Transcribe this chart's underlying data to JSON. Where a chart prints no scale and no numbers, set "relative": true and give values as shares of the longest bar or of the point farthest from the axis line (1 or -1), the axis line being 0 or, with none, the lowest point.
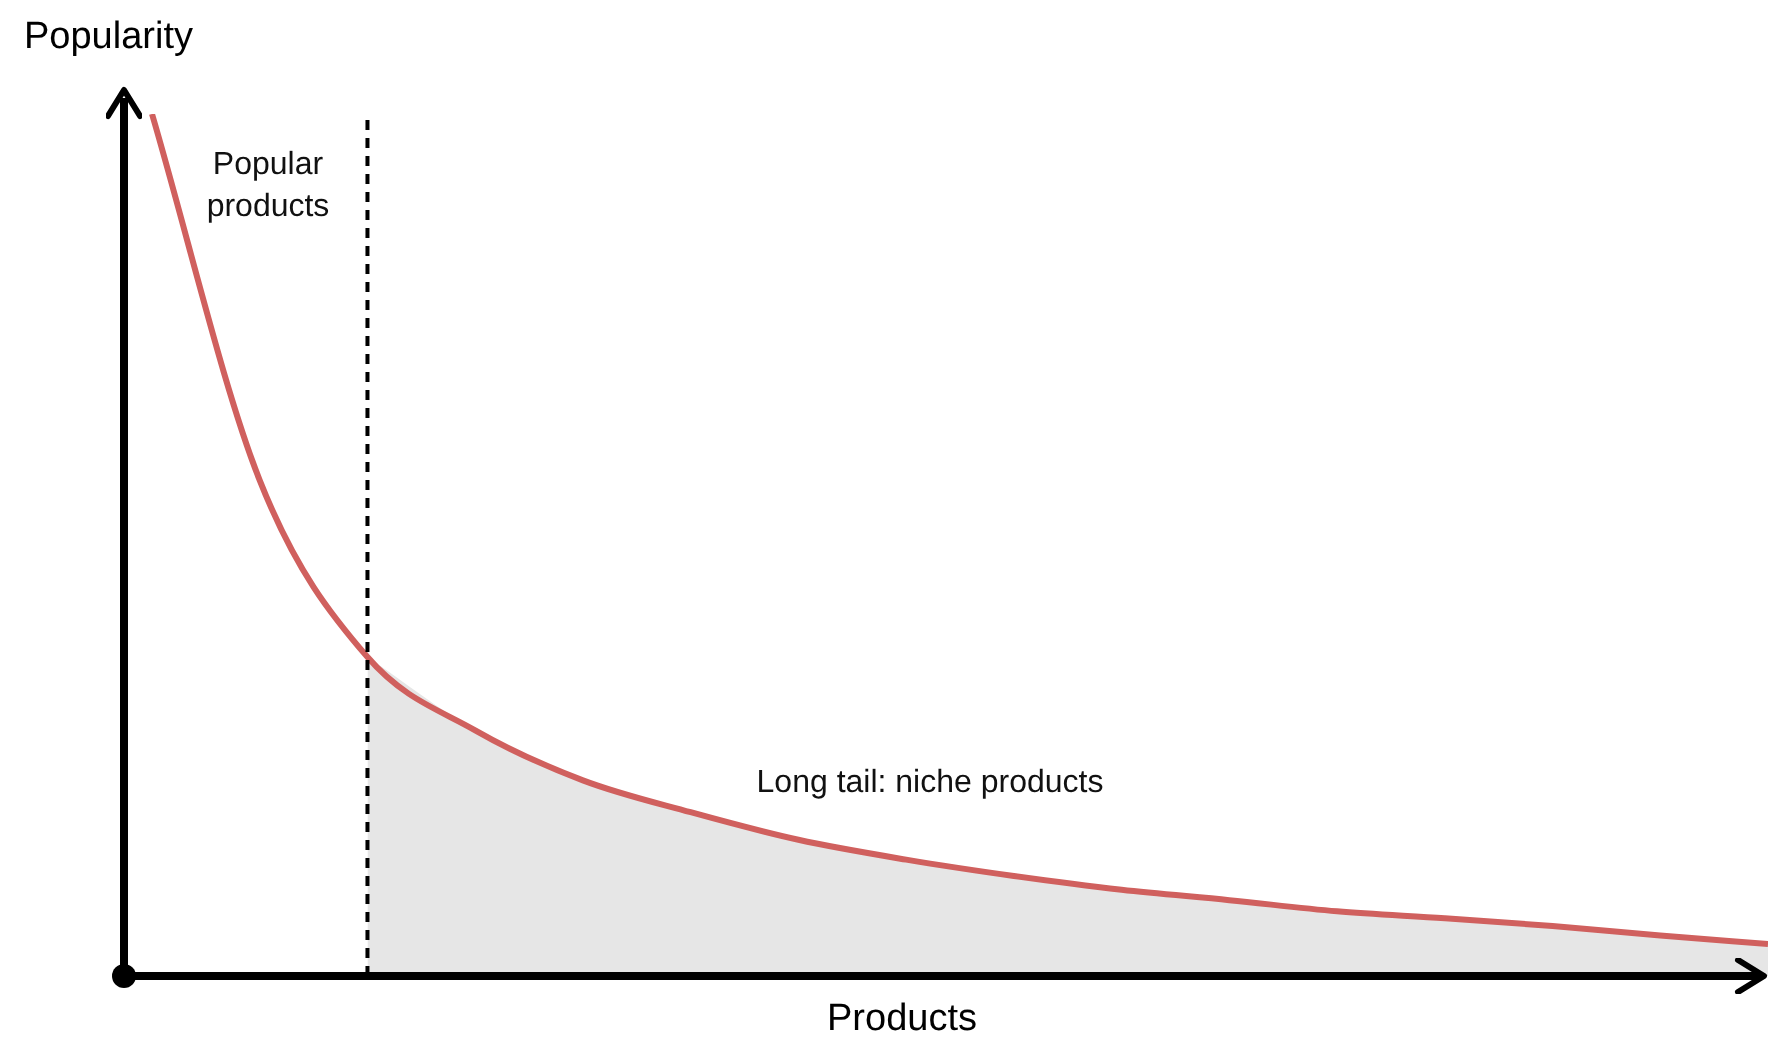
{
  "chart_data": {
    "type": "line",
    "relative": true,
    "xlabel": "Products",
    "ylabel": "Popularity",
    "annotations": [
      "Popular products",
      "Long tail: niche products"
    ],
    "categories": [
      null,
      null,
      null,
      null,
      null,
      null,
      null,
      null,
      null,
      null,
      null,
      null,
      null,
      null,
      null,
      null
    ],
    "series": [
      {
        "type": "line",
        "color": "#d0605e",
        "values": [
          1.0,
          0.575,
          0.37,
          0.285,
          0.227,
          0.19,
          0.158,
          0.135,
          0.116,
          0.1,
          0.088,
          0.075,
          0.067,
          0.058,
          0.047,
          0.037
        ]
      },
      {
        "type": "area",
        "color": "#e6e6e6",
        "values": [
          null,
          null,
          0.37,
          0.285,
          0.227,
          0.19,
          0.158,
          0.135,
          0.116,
          0.1,
          0.088,
          0.075,
          0.067,
          0.058,
          0.047,
          0.037
        ]
      }
    ],
    "grid": false,
    "legend": false,
    "tick_labels": false,
    "marker": "none"
  }
}
